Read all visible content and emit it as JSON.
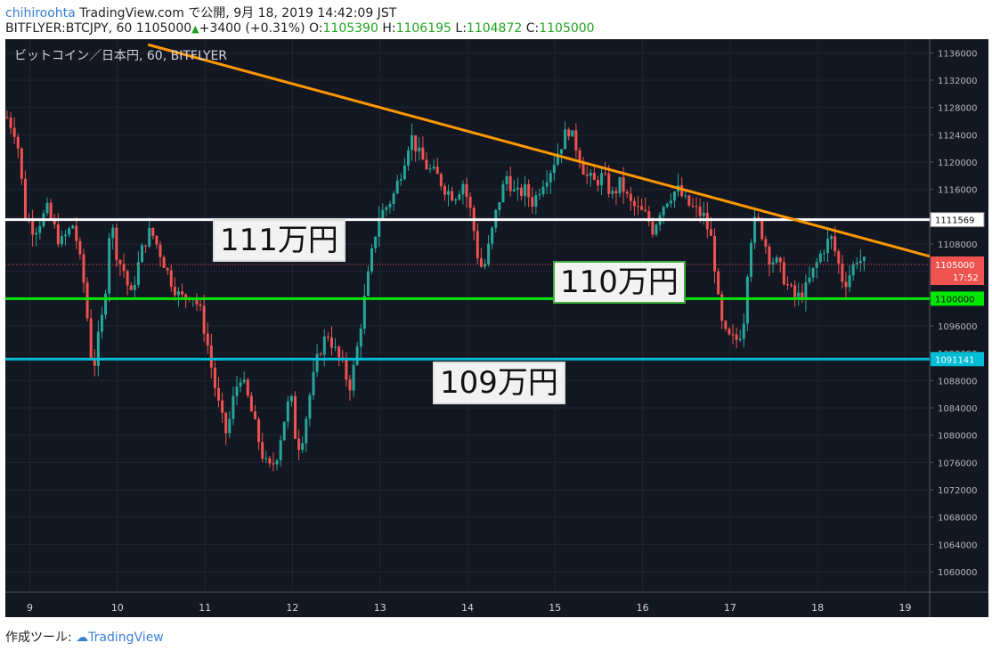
{
  "header": {
    "author": "chihiroohta",
    "published_text": "TradingView.com で公開, 9月 18, 2019 14:42:09 JST",
    "symbol_text": "BITFLYER:BTCJPY, 60 1105000",
    "change_text": "+3400 (+0.31%)",
    "o_label": "O:",
    "o_value": "1105390",
    "h_label": "H:",
    "h_value": "1106195",
    "l_label": "L:",
    "l_value": "1104872",
    "c_label": "C:",
    "c_value": "1105000"
  },
  "chart_title": "ビットコイン／日本円, 60, BITFLYER",
  "callouts": {
    "c111": "111万円",
    "c110": "110万円",
    "c109": "109万円"
  },
  "footer": {
    "prefix": "作成ツール:",
    "brand": "TradingView"
  },
  "colors": {
    "bg": "#131722",
    "up": "#26a69a",
    "down": "#ef5350",
    "trend": "#ff9800",
    "white_line": "#ffffff",
    "green_line": "#00e600",
    "cyan_line": "#00bcd4"
  },
  "chart_data": {
    "type": "candlestick",
    "ylim": [
      1057000,
      1138000
    ],
    "xlim": [
      8.72,
      19.28
    ],
    "y_ticks": [
      1060000,
      1064000,
      1068000,
      1072000,
      1076000,
      1080000,
      1084000,
      1088000,
      1092000,
      1096000,
      1100000,
      1104000,
      1108000,
      1112000,
      1116000,
      1120000,
      1124000,
      1128000,
      1132000,
      1136000
    ],
    "x_ticks": [
      "9",
      "10",
      "11",
      "12",
      "13",
      "14",
      "15",
      "16",
      "17",
      "18",
      "19"
    ],
    "x_tick_values": [
      9,
      10,
      11,
      12,
      13,
      14,
      15,
      16,
      17,
      18,
      19
    ],
    "horizontal_lines": [
      {
        "value": 1111569,
        "label": "1111569",
        "color": "#ffffff"
      },
      {
        "value": 1100000,
        "label": "1100000",
        "color": "#00e600"
      },
      {
        "value": 1091141,
        "label": "1091141",
        "color": "#00bcd4"
      }
    ],
    "last_price": {
      "value": 1105000,
      "label": "1105000",
      "countdown": "17:52"
    },
    "trendline": [
      [
        10.35,
        1137200
      ],
      [
        19.28,
        1106200
      ]
    ],
    "close_path": [
      [
        8.72,
        1127000
      ],
      [
        8.85,
        1124000
      ],
      [
        8.95,
        1112000
      ],
      [
        9.05,
        1110000
      ],
      [
        9.2,
        1113000
      ],
      [
        9.35,
        1108000
      ],
      [
        9.5,
        1111000
      ],
      [
        9.62,
        1102000
      ],
      [
        9.72,
        1089000
      ],
      [
        9.78,
        1094000
      ],
      [
        9.85,
        1099000
      ],
      [
        9.92,
        1112000
      ],
      [
        10.0,
        1106000
      ],
      [
        10.08,
        1104000
      ],
      [
        10.15,
        1100000
      ],
      [
        10.22,
        1104000
      ],
      [
        10.3,
        1108000
      ],
      [
        10.38,
        1110000
      ],
      [
        10.48,
        1107000
      ],
      [
        10.6,
        1103000
      ],
      [
        10.72,
        1100000
      ],
      [
        10.85,
        1101000
      ],
      [
        10.95,
        1098000
      ],
      [
        11.02,
        1094000
      ],
      [
        11.1,
        1088000
      ],
      [
        11.18,
        1083000
      ],
      [
        11.25,
        1080000
      ],
      [
        11.32,
        1085000
      ],
      [
        11.4,
        1089000
      ],
      [
        11.5,
        1085000
      ],
      [
        11.6,
        1080000
      ],
      [
        11.68,
        1076000
      ],
      [
        11.75,
        1075000
      ],
      [
        11.82,
        1077000
      ],
      [
        11.9,
        1082000
      ],
      [
        11.98,
        1086000
      ],
      [
        12.05,
        1078000
      ],
      [
        12.12,
        1080000
      ],
      [
        12.2,
        1086000
      ],
      [
        12.3,
        1092000
      ],
      [
        12.4,
        1095000
      ],
      [
        12.5,
        1092000
      ],
      [
        12.58,
        1090000
      ],
      [
        12.65,
        1087000
      ],
      [
        12.72,
        1091000
      ],
      [
        12.8,
        1098000
      ],
      [
        12.9,
        1106000
      ],
      [
        12.98,
        1112000
      ],
      [
        13.05,
        1113000
      ],
      [
        13.15,
        1115000
      ],
      [
        13.25,
        1119000
      ],
      [
        13.35,
        1124000
      ],
      [
        13.45,
        1121000
      ],
      [
        13.55,
        1119000
      ],
      [
        13.65,
        1118000
      ],
      [
        13.75,
        1116000
      ],
      [
        13.85,
        1115000
      ],
      [
        13.95,
        1117000
      ],
      [
        14.05,
        1112000
      ],
      [
        14.12,
        1106000
      ],
      [
        14.18,
        1104000
      ],
      [
        14.25,
        1108000
      ],
      [
        14.35,
        1114000
      ],
      [
        14.45,
        1118000
      ],
      [
        14.55,
        1115000
      ],
      [
        14.65,
        1116000
      ],
      [
        14.75,
        1114000
      ],
      [
        14.85,
        1117000
      ],
      [
        14.95,
        1119000
      ],
      [
        15.05,
        1122000
      ],
      [
        15.15,
        1125000
      ],
      [
        15.25,
        1122000
      ],
      [
        15.35,
        1118000
      ],
      [
        15.45,
        1117000
      ],
      [
        15.55,
        1118000
      ],
      [
        15.65,
        1115000
      ],
      [
        15.75,
        1117000
      ],
      [
        15.85,
        1114000
      ],
      [
        15.95,
        1113000
      ],
      [
        16.05,
        1112000
      ],
      [
        16.12,
        1110000
      ],
      [
        16.2,
        1113000
      ],
      [
        16.3,
        1115000
      ],
      [
        16.4,
        1116000
      ],
      [
        16.5,
        1114000
      ],
      [
        16.6,
        1113000
      ],
      [
        16.7,
        1112000
      ],
      [
        16.8,
        1108000
      ],
      [
        16.86,
        1100000
      ],
      [
        16.92,
        1095000
      ],
      [
        17.0,
        1094000
      ],
      [
        17.08,
        1094000
      ],
      [
        17.15,
        1096000
      ],
      [
        17.22,
        1108000
      ],
      [
        17.3,
        1112000
      ],
      [
        17.38,
        1109000
      ],
      [
        17.45,
        1106000
      ],
      [
        17.55,
        1105000
      ],
      [
        17.65,
        1102000
      ],
      [
        17.75,
        1100000
      ],
      [
        17.85,
        1101000
      ],
      [
        17.95,
        1104000
      ],
      [
        18.05,
        1107000
      ],
      [
        18.15,
        1109000
      ],
      [
        18.22,
        1106000
      ],
      [
        18.3,
        1102000
      ],
      [
        18.38,
        1104000
      ],
      [
        18.45,
        1106000
      ],
      [
        18.55,
        1105000
      ]
    ]
  }
}
